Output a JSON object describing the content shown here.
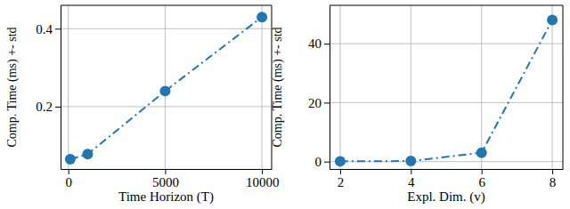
{
  "chart_data": [
    {
      "type": "line",
      "x_label": "Time Horizon (T)",
      "y_label": "Comp. Time (ms) +- std",
      "x": [
        100,
        1000,
        5000,
        10000
      ],
      "values": [
        0.065,
        0.078,
        0.24,
        0.43
      ],
      "color": "#1f77b4",
      "marker": "circle",
      "line_style": "dashdot",
      "xlim": [
        -400,
        10500
      ],
      "ylim": [
        0.04,
        0.46
      ],
      "xticks": [
        0,
        5000,
        10000
      ],
      "yticks": [
        0.2,
        0.4
      ],
      "grid": true
    },
    {
      "type": "line",
      "x_label": "Expl. Dim. (v)",
      "y_label": "Comp. Time (ms) +- std",
      "x": [
        2,
        4,
        6,
        8
      ],
      "values": [
        0.1,
        0.2,
        3,
        48
      ],
      "color": "#1f77b4",
      "marker": "circle",
      "line_style": "dashdot",
      "xlim": [
        1.7,
        8.3
      ],
      "ylim": [
        -2.5,
        53
      ],
      "xticks": [
        2,
        4,
        6,
        8
      ],
      "yticks": [
        0,
        20,
        40
      ],
      "grid": true
    }
  ]
}
